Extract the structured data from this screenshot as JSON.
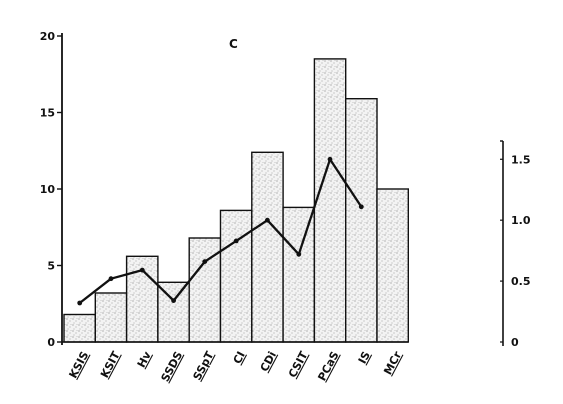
{
  "chart_data": {
    "type": "bar",
    "title": "C",
    "xlabel": "",
    "ylabel": "",
    "categories": [
      "KSIS",
      "KSIT",
      "Hv",
      "SSDS",
      "SSpT",
      "CI",
      "CDi",
      "CSIT",
      "PCaS",
      "IS",
      "MCr"
    ],
    "series": [
      {
        "type": "bar",
        "axis": "left",
        "values": [
          1.8,
          3.2,
          5.6,
          3.9,
          6.8,
          8.6,
          12.4,
          8.8,
          18.5,
          15.9,
          10.0
        ]
      },
      {
        "type": "line",
        "axis": "right",
        "values": [
          0.32,
          0.52,
          0.59,
          0.34,
          0.66,
          0.83,
          1.0,
          0.72,
          1.5,
          1.11,
          null
        ]
      }
    ],
    "ylim": [
      0,
      20
    ],
    "y_ticks": [
      "0",
      "5",
      "10",
      "15",
      "20"
    ],
    "y2lim": [
      0,
      1.65
    ],
    "y2_ticks": [
      "0",
      "0.5",
      "1.0",
      "1.5"
    ],
    "grid": false,
    "legend": "none",
    "bar_fill": "stippled",
    "colors": {
      "background": "#ffffff",
      "bar_edge": "#111111",
      "stipple_dot": "#8a8a8a",
      "stipple_base": "#f3f3f3",
      "line": "#111111",
      "axis": "#111111"
    }
  }
}
